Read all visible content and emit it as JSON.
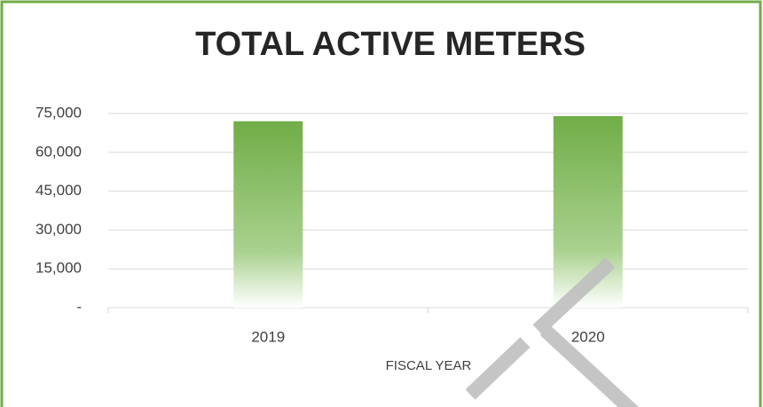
{
  "chart_data": {
    "type": "bar",
    "title": "TOTAL ACTIVE METERS",
    "categories": [
      "2019",
      "2020"
    ],
    "values": [
      72000,
      74000
    ],
    "color": "#70ad47",
    "xlabel": "FISCAL YEAR",
    "ylim": [
      0,
      75000
    ],
    "yticks": [
      {
        "value": 0,
        "label": "-"
      },
      {
        "value": 15000,
        "label": "15,000"
      },
      {
        "value": 30000,
        "label": "30,000"
      },
      {
        "value": 45000,
        "label": "45,000"
      },
      {
        "value": 60000,
        "label": "60,000"
      },
      {
        "value": 75000,
        "label": "75,000"
      }
    ],
    "grid": true
  }
}
